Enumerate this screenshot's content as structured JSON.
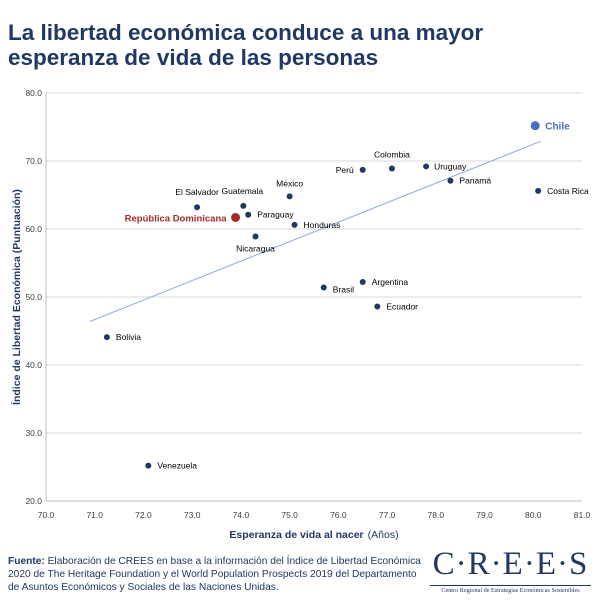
{
  "title": {
    "line1": "La libertad económica conduce a una mayor",
    "line2": "esperanza de vida de las personas"
  },
  "colors": {
    "title": "#1f3864",
    "point": "#1f3864",
    "chile": "#4472c4",
    "highlight": "#a52a2a",
    "trend": "#8ea9db",
    "grid": "#d9d9d9"
  },
  "chart_data": {
    "type": "scatter",
    "xlabel_bold": "Esperanza de vida al nacer",
    "xlabel_unit": "(Años)",
    "ylabel": "Índice de Libertad Económica (Puntuación)",
    "xlim": [
      70.0,
      81.0
    ],
    "ylim": [
      20.0,
      80.0
    ],
    "x_ticks": [
      "70.0",
      "71.0",
      "72.0",
      "73.0",
      "74.0",
      "75.0",
      "76.0",
      "77.0",
      "78.0",
      "79.0",
      "80.0",
      "81.0"
    ],
    "y_ticks": [
      "20.0",
      "30.0",
      "40.0",
      "50.0",
      "60.0",
      "70.0",
      "80.0"
    ],
    "grid": "horizontal",
    "points": [
      {
        "label": "Chile",
        "x": 80.04,
        "y": 75.2,
        "style": "chile"
      },
      {
        "label": "Colombia",
        "x": 77.1,
        "y": 68.9,
        "style": "normal"
      },
      {
        "label": "Perú",
        "x": 76.5,
        "y": 68.7,
        "style": "normal"
      },
      {
        "label": "Uruguay",
        "x": 77.8,
        "y": 69.2,
        "style": "normal"
      },
      {
        "label": "Panamá",
        "x": 78.3,
        "y": 67.1,
        "style": "normal"
      },
      {
        "label": "Costa Rica",
        "x": 80.1,
        "y": 65.6,
        "style": "normal"
      },
      {
        "label": "México",
        "x": 75.0,
        "y": 64.8,
        "style": "normal"
      },
      {
        "label": "El Salvador",
        "x": 73.1,
        "y": 63.2,
        "style": "normal"
      },
      {
        "label": "Guatemala",
        "x": 74.05,
        "y": 63.4,
        "style": "normal"
      },
      {
        "label": "Paraguay",
        "x": 74.15,
        "y": 62.1,
        "style": "normal"
      },
      {
        "label": "República Dominicana",
        "x": 73.89,
        "y": 61.7,
        "style": "highlight"
      },
      {
        "label": "Honduras",
        "x": 75.1,
        "y": 60.6,
        "style": "normal"
      },
      {
        "label": "Nicaragua",
        "x": 74.3,
        "y": 58.9,
        "style": "normal"
      },
      {
        "label": "Argentina",
        "x": 76.5,
        "y": 52.2,
        "style": "normal"
      },
      {
        "label": "Brasil",
        "x": 75.7,
        "y": 51.4,
        "style": "normal"
      },
      {
        "label": "Ecuador",
        "x": 76.8,
        "y": 48.6,
        "style": "normal"
      },
      {
        "label": "Bolivia",
        "x": 71.25,
        "y": 44.1,
        "style": "normal"
      },
      {
        "label": "Venezuela",
        "x": 72.1,
        "y": 25.2,
        "style": "normal"
      }
    ],
    "trendline": {
      "x": [
        70.9,
        80.15
      ],
      "y": [
        46.4,
        72.9
      ]
    }
  },
  "footer": {
    "source_label": "Fuente:",
    "source_text": "Elaboración de CREES en base a la información del Índice de Libertad Económica 2020 de The Heritage Foundation y el World Population Prospects 2019 del Departamento de Asuntos Económicos y Sociales de las Naciones Unidas."
  },
  "logo": {
    "wordmark": "C·R·E·E·S",
    "subtitle": "Centro Regional de Estrategias Económicas Sostenibles"
  }
}
